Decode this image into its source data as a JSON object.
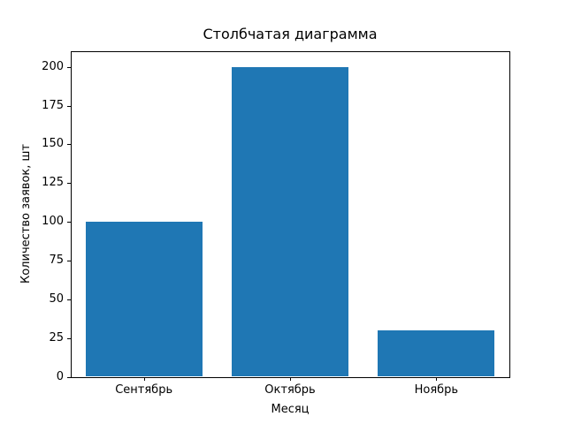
{
  "chart_data": {
    "type": "bar",
    "title": "Столбчатая диаграмма",
    "xlabel": "Месяц",
    "ylabel": "Количество заявок, шт",
    "categories": [
      "Сентябрь",
      "Октябрь",
      "Ноябрь"
    ],
    "values": [
      100,
      200,
      30
    ],
    "yticks": [
      0,
      25,
      50,
      75,
      100,
      125,
      150,
      175,
      200
    ],
    "ylim": [
      0,
      210
    ],
    "bar_color": "#1f77b4",
    "bar_width_fraction": 0.8,
    "grid": false,
    "legend_position": "none",
    "background_color": "#ffffff",
    "axis_color": "#000000"
  }
}
